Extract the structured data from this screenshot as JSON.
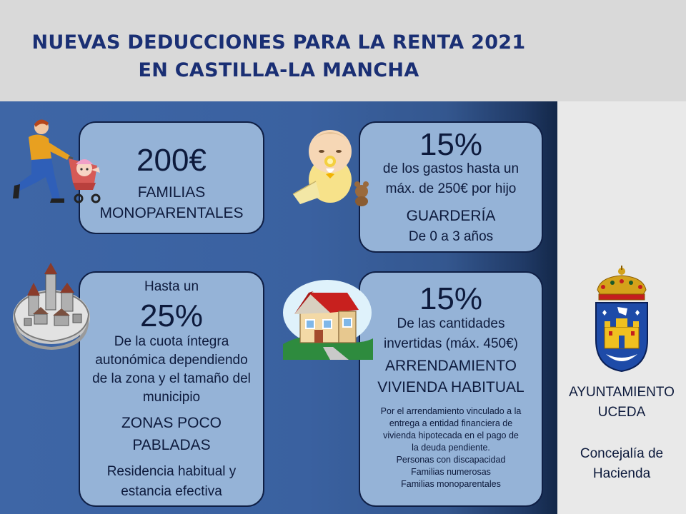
{
  "title": {
    "line1": "NUEVAS DEDUCCIONES PARA LA RENTA 2021",
    "line2": "EN CASTILLA-LA MANCHA"
  },
  "boxes": {
    "familias": {
      "amount": "200€",
      "label1": "FAMILIAS",
      "label2": "MONOPARENTALES"
    },
    "guarderia": {
      "percent": "15%",
      "desc1": "de los gastos hasta un",
      "desc2": "máx. de 250€ por hijo",
      "label": "GUARDERÍA",
      "sub": "De 0 a 3 años"
    },
    "zonas": {
      "pre": "Hasta un",
      "percent": "25%",
      "desc1": "De la cuota íntegra",
      "desc2": "autonómica dependiendo",
      "desc3": "de la zona y el tamaño del",
      "desc4": "municipio",
      "label1": "ZONAS POCO",
      "label2": "PABLADAS",
      "foot1": "Residencia habitual y",
      "foot2": "estancia efectiva"
    },
    "arrendamiento": {
      "percent": "15%",
      "desc1": "De las cantidades",
      "desc2": "invertidas (máx. 450€)",
      "label1": "ARRENDAMIENTO",
      "label2": "VIVIENDA HABITUAL",
      "small1": "Por el arrendamiento  vinculado a la",
      "small2": "entrega a entidad financiera de",
      "small3": "vivienda hipotecada en el pago de",
      "small4": "la deuda pendiente.",
      "small5": "Personas con discapacidad",
      "small6": "Familias numerosas",
      "small7": "Familias monoparentales"
    }
  },
  "sidebar": {
    "org1": "AYUNTAMIENTO",
    "org2": "UCEDA",
    "dept1": "Concejalía de",
    "dept2": "Hacienda"
  },
  "icons": [
    "parent-with-stroller-icon",
    "baby-icon",
    "walled-town-icon",
    "house-icon",
    "coat-of-arms-icon"
  ],
  "colors": {
    "title": "#1a2f74",
    "panel": "#3e66a6",
    "box": "#95b3d7",
    "text": "#0d1a3c"
  }
}
